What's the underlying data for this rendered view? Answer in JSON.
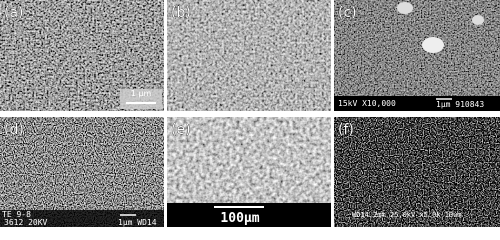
{
  "panels": [
    {
      "label": "(a)",
      "scale": "1 μm"
    },
    {
      "label": "(b)"
    },
    {
      "label": "(c)",
      "info": "15kV X10,000",
      "scale": "1μm 910843"
    },
    {
      "label": "(d)",
      "info": "TE 9-8",
      "info2": "3612 20KV",
      "scale": "1μm WD14"
    },
    {
      "label": "(e)",
      "scale": "100μm"
    },
    {
      "label": "(f)",
      "info": "WD14.2mm 25.0kV x5.0k 10um"
    }
  ]
}
